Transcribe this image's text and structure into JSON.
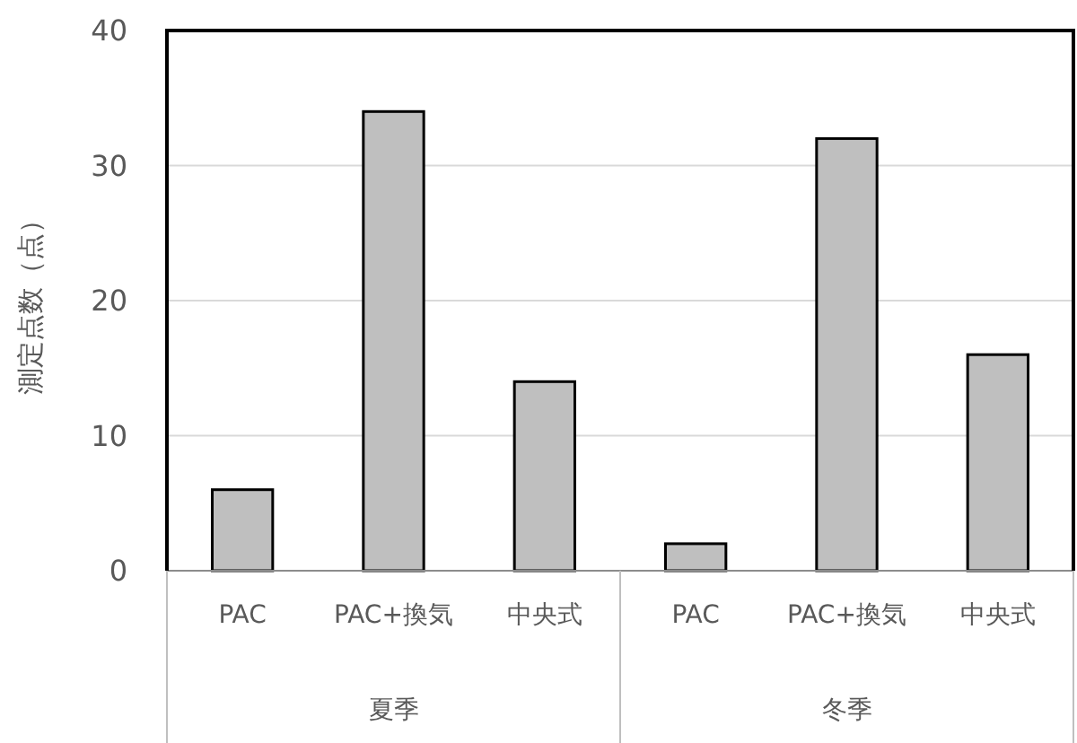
{
  "chart_data": {
    "type": "bar",
    "ylabel": "測定点数（点）",
    "categories": [
      "PAC",
      "PAC+換気",
      "中央式",
      "PAC",
      "PAC+換気",
      "中央式"
    ],
    "values": [
      6,
      34,
      14,
      2,
      32,
      16
    ],
    "color": "#bfbfbf",
    "ylim": [
      0,
      40
    ],
    "yticks": [
      0,
      10,
      20,
      30,
      40
    ],
    "grid": "y",
    "annotations": [
      "夏季",
      "冬季"
    ]
  }
}
